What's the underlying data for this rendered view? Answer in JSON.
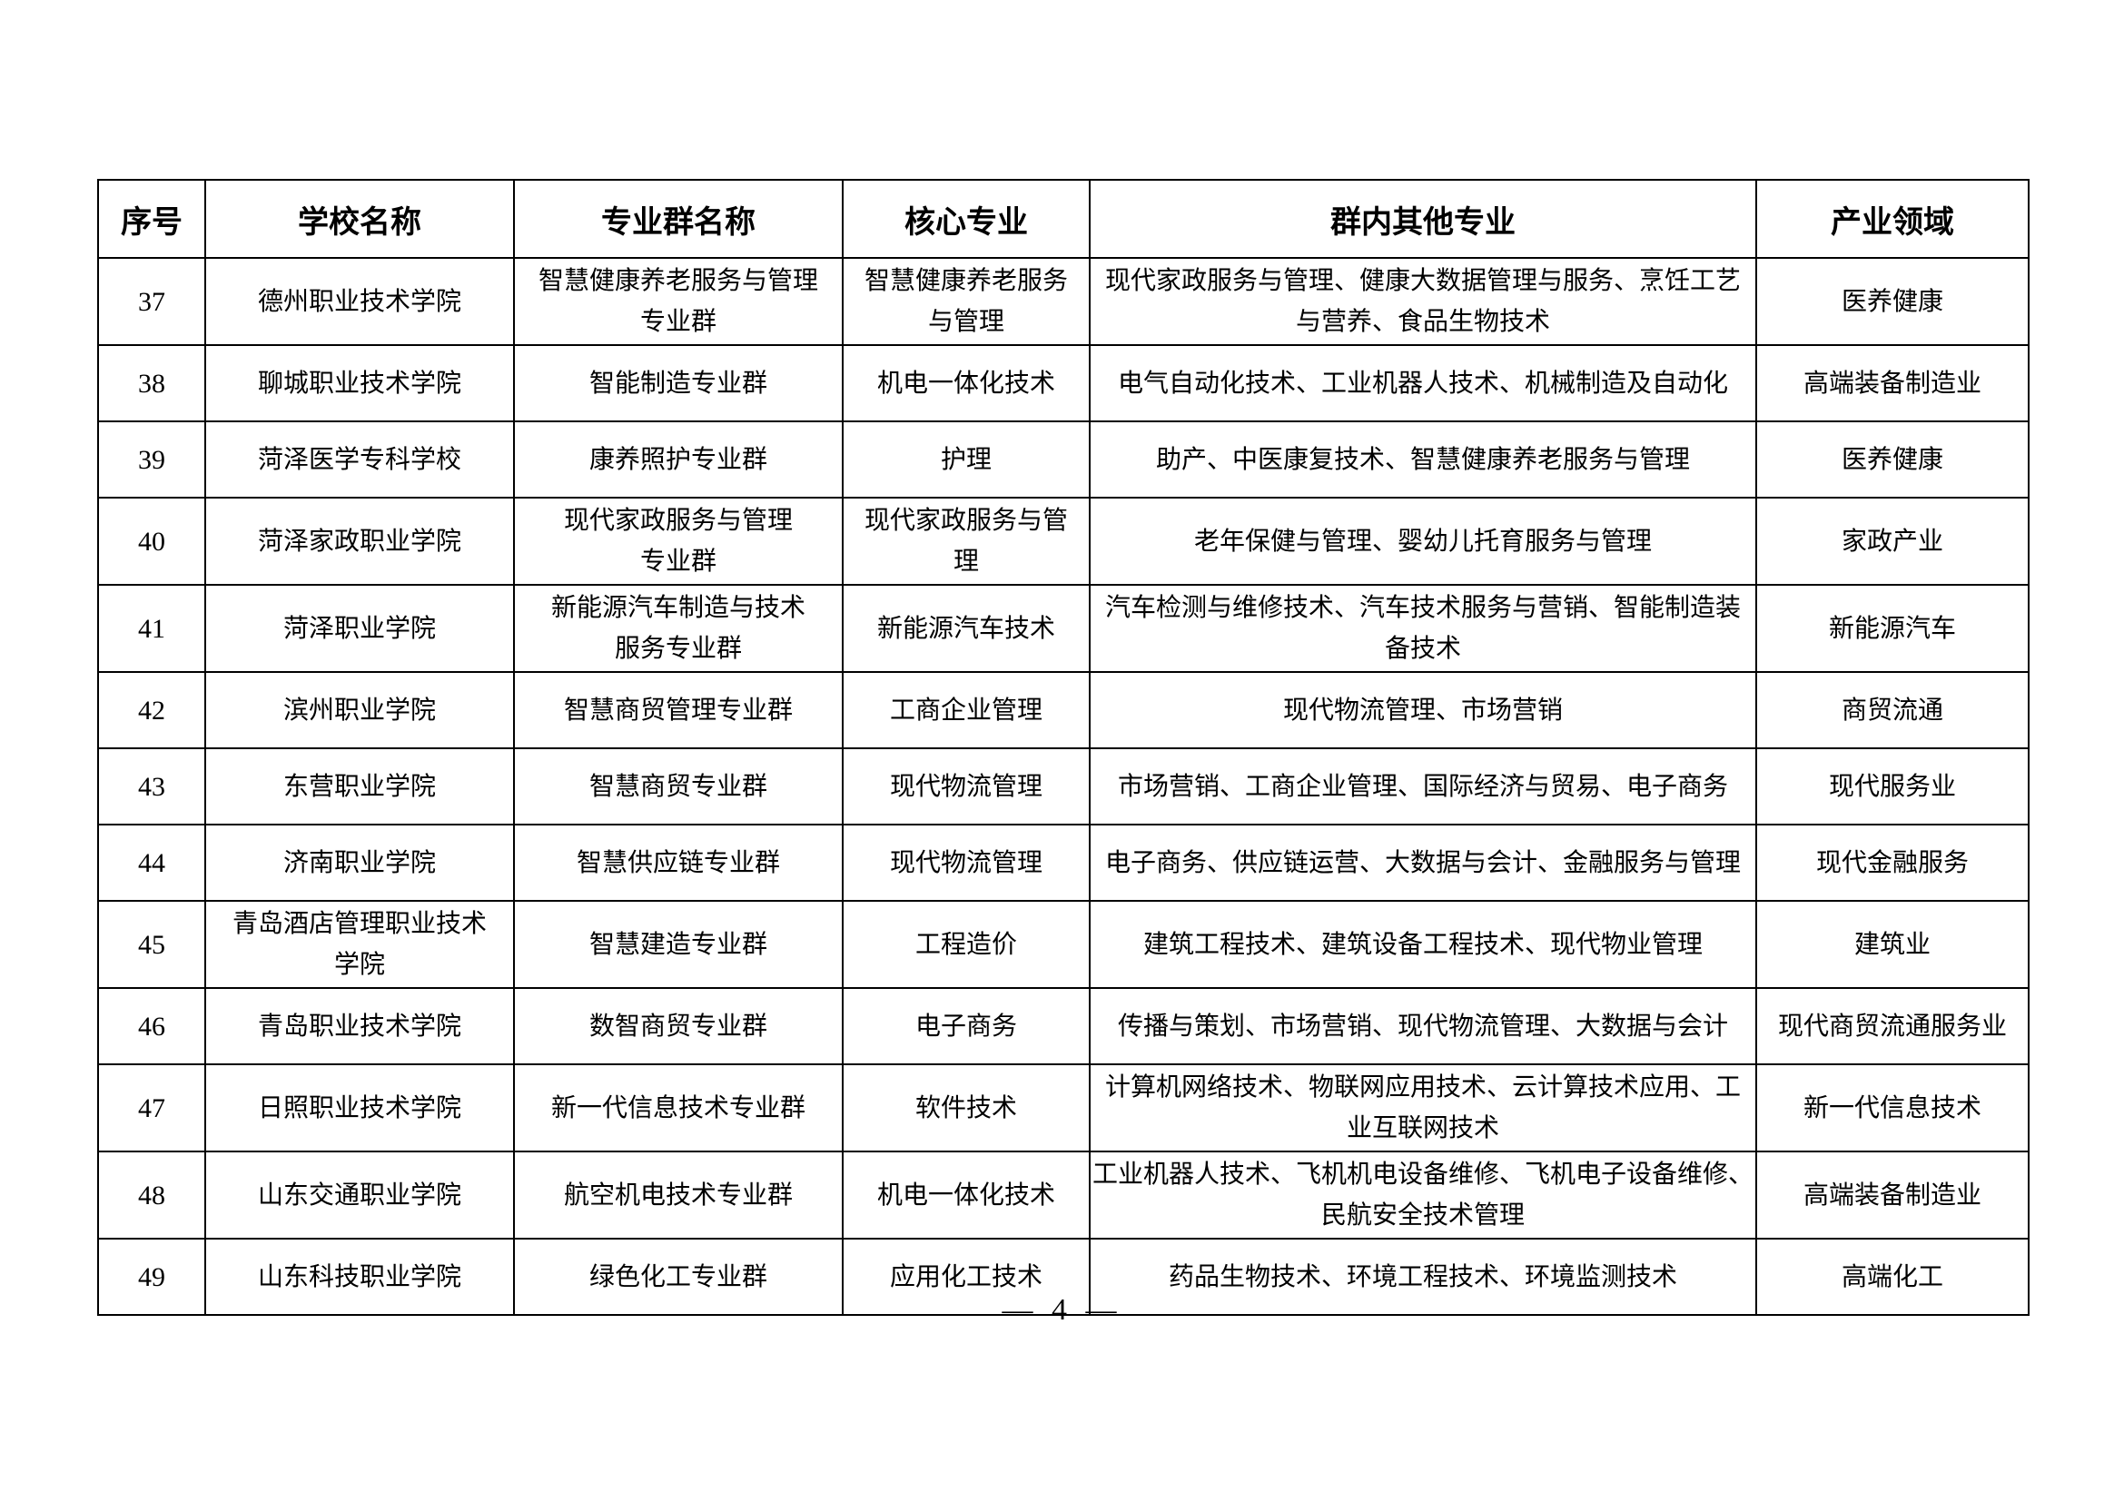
{
  "page": {
    "number_label": "— 4 —"
  },
  "table": {
    "headers": [
      "序号",
      "学校名称",
      "专业群名称",
      "核心专业",
      "群内其他专业",
      "产业领域"
    ],
    "rows": [
      {
        "no": "37",
        "school": "德州职业技术学院",
        "group": "智慧健康养老服务与管理\n专业群",
        "core": "智慧健康养老服务\n与管理",
        "others": "现代家政服务与管理、健康大数据管理与服务、烹饪工艺\n与营养、食品生物技术",
        "industry": "医养健康"
      },
      {
        "no": "38",
        "school": "聊城职业技术学院",
        "group": "智能制造专业群",
        "core": "机电一体化技术",
        "others": "电气自动化技术、工业机器人技术、机械制造及自动化",
        "industry": "高端装备制造业"
      },
      {
        "no": "39",
        "school": "菏泽医学专科学校",
        "group": "康养照护专业群",
        "core": "护理",
        "others": "助产、中医康复技术、智慧健康养老服务与管理",
        "industry": "医养健康"
      },
      {
        "no": "40",
        "school": "菏泽家政职业学院",
        "group": "现代家政服务与管理\n专业群",
        "core": "现代家政服务与管\n理",
        "others": "老年保健与管理、婴幼儿托育服务与管理",
        "industry": "家政产业"
      },
      {
        "no": "41",
        "school": "菏泽职业学院",
        "group": "新能源汽车制造与技术\n服务专业群",
        "core": "新能源汽车技术",
        "others": "汽车检测与维修技术、汽车技术服务与营销、智能制造装\n备技术",
        "industry": "新能源汽车"
      },
      {
        "no": "42",
        "school": "滨州职业学院",
        "group": "智慧商贸管理专业群",
        "core": "工商企业管理",
        "others": "现代物流管理、市场营销",
        "industry": "商贸流通"
      },
      {
        "no": "43",
        "school": "东营职业学院",
        "group": "智慧商贸专业群",
        "core": "现代物流管理",
        "others": "市场营销、工商企业管理、国际经济与贸易、电子商务",
        "industry": "现代服务业"
      },
      {
        "no": "44",
        "school": "济南职业学院",
        "group": "智慧供应链专业群",
        "core": "现代物流管理",
        "others": "电子商务、供应链运营、大数据与会计、金融服务与管理",
        "industry": "现代金融服务"
      },
      {
        "no": "45",
        "school": "青岛酒店管理职业技术\n学院",
        "group": "智慧建造专业群",
        "core": "工程造价",
        "others": "建筑工程技术、建筑设备工程技术、现代物业管理",
        "industry": "建筑业"
      },
      {
        "no": "46",
        "school": "青岛职业技术学院",
        "group": "数智商贸专业群",
        "core": "电子商务",
        "others": "传播与策划、市场营销、现代物流管理、大数据与会计",
        "industry": "现代商贸流通服务业"
      },
      {
        "no": "47",
        "school": "日照职业技术学院",
        "group": "新一代信息技术专业群",
        "core": "软件技术",
        "others": "计算机网络技术、物联网应用技术、云计算技术应用、工\n业互联网技术",
        "industry": "新一代信息技术"
      },
      {
        "no": "48",
        "school": "山东交通职业学院",
        "group": "航空机电技术专业群",
        "core": "机电一体化技术",
        "others": "工业机器人技术、飞机机电设备维修、飞机电子设备维修、\n民航安全技术管理",
        "industry": "高端装备制造业"
      },
      {
        "no": "49",
        "school": "山东科技职业学院",
        "group": "绿色化工专业群",
        "core": "应用化工技术",
        "others": "药品生物技术、环境工程技术、环境监测技术",
        "industry": "高端化工"
      }
    ]
  }
}
